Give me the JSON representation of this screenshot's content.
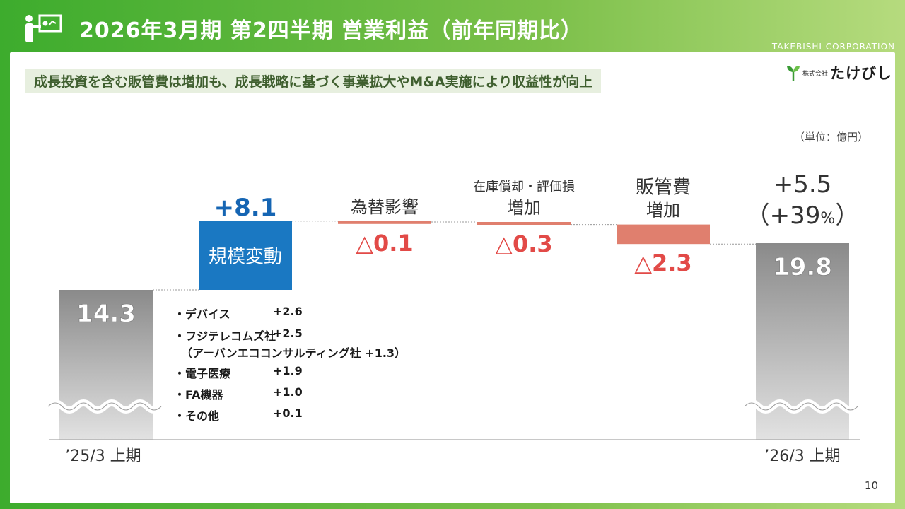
{
  "header": {
    "title": "2026年3月期 第2四半期 営業利益（前年同期比）",
    "corp": "TAKEBISHI CORPORATION",
    "subtitle": "成長投資を含む販管費は増加も、成長戦略に基づく事業拡大やM&A実施により収益性が向上",
    "logo_small": "株式会社",
    "logo_big": "たけびし",
    "unit": "（単位：億円）",
    "page_number": "10"
  },
  "colors": {
    "frame_green": "#3dac2d",
    "increase_blue": "#1a78c2",
    "decrease_red": "#e07f6e",
    "decrease_text": "#e24a47",
    "increase_text": "#1565b3"
  },
  "chart_data": {
    "type": "bar",
    "subtype": "waterfall",
    "unit": "億円",
    "categories": [
      "'25/3 上期",
      "規模変動",
      "為替影響",
      "在庫償却・評価損 増加",
      "販管費 増加",
      "'26/3 上期"
    ],
    "steps": [
      {
        "label": "'25/3 上期",
        "kind": "total",
        "value": 14.3,
        "value_text": "14.3"
      },
      {
        "label": "規模変動",
        "kind": "increase",
        "value": 8.1,
        "value_text": "+8.1",
        "inner_text": "規模変動"
      },
      {
        "label": "為替影響",
        "kind": "decrease",
        "value": -0.1,
        "value_text": "△0.1",
        "head_line1": "為替影響",
        "head_line2": ""
      },
      {
        "label": "在庫償却・評価損 増加",
        "kind": "decrease",
        "value": -0.3,
        "value_text": "△0.3",
        "head_line1": "在庫償却・評価損",
        "head_line2": "増加"
      },
      {
        "label": "販管費 増加",
        "kind": "decrease",
        "value": -2.3,
        "value_text": "△2.3",
        "head_line1": "販管費",
        "head_line2": "増加"
      },
      {
        "label": "'26/3 上期",
        "kind": "total",
        "value": 19.8,
        "value_text": "19.8",
        "change_text": "+5.5",
        "change_pct_text": "（+39",
        "change_pct_unit": "%",
        "change_pct_close": "）"
      }
    ],
    "axis_break": true,
    "x_labels": [
      "’25/3 上期",
      "’26/3 上期"
    ],
    "breakdown": [
      {
        "name": "・デバイス",
        "value": "+2.6"
      },
      {
        "name": "・フジテレコムズ社",
        "value": "+2.5",
        "note": "（アーバンエココンサルティング社 +1.3）"
      },
      {
        "name": "・電子医療",
        "value": "+1.9"
      },
      {
        "name": "・FA機器",
        "value": "+1.0"
      },
      {
        "name": "・その他",
        "value": "+0.1"
      }
    ]
  }
}
